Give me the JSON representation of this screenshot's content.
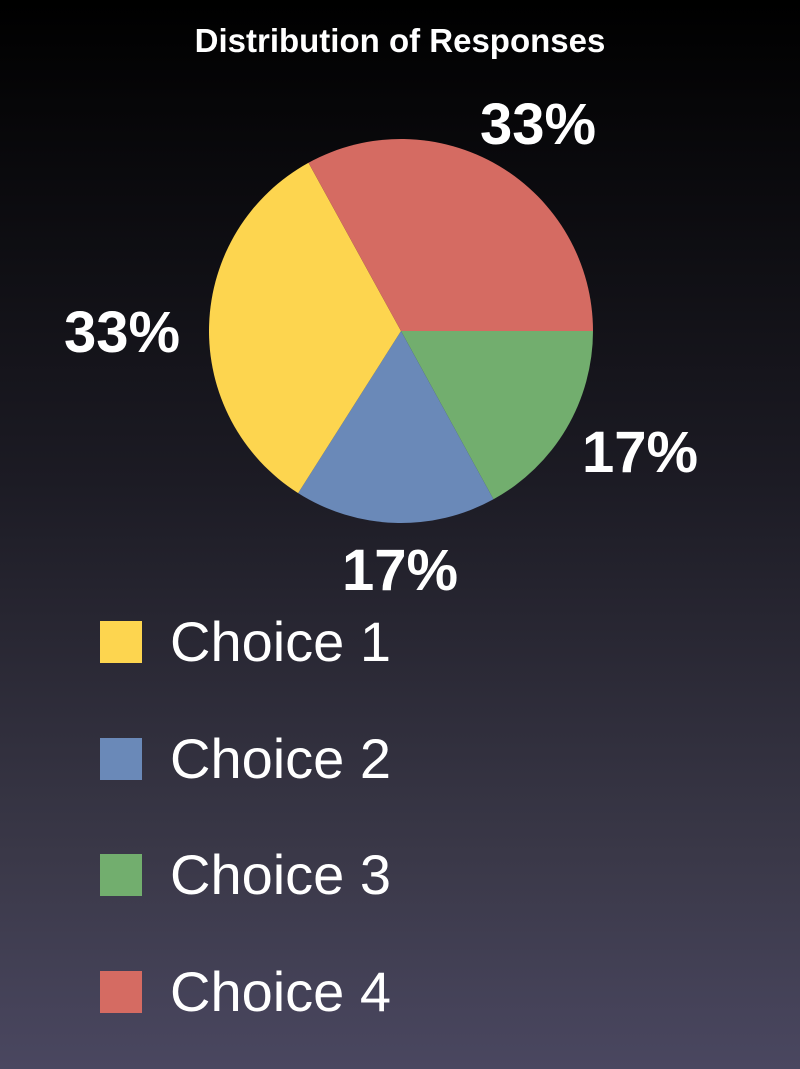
{
  "chart_data": {
    "type": "pie",
    "title": "Distribution of Responses",
    "slices": [
      {
        "label": "Choice 1",
        "value": 33,
        "value_label": "33%",
        "color": "#fdd54f"
      },
      {
        "label": "Choice 2",
        "value": 17,
        "value_label": "17%",
        "color": "#6a89b8"
      },
      {
        "label": "Choice 3",
        "value": 17,
        "value_label": "17%",
        "color": "#72ae6e"
      },
      {
        "label": "Choice 4",
        "value": 33,
        "value_label": "33%",
        "color": "#d56b62"
      }
    ],
    "legend_position": "bottom-left"
  }
}
